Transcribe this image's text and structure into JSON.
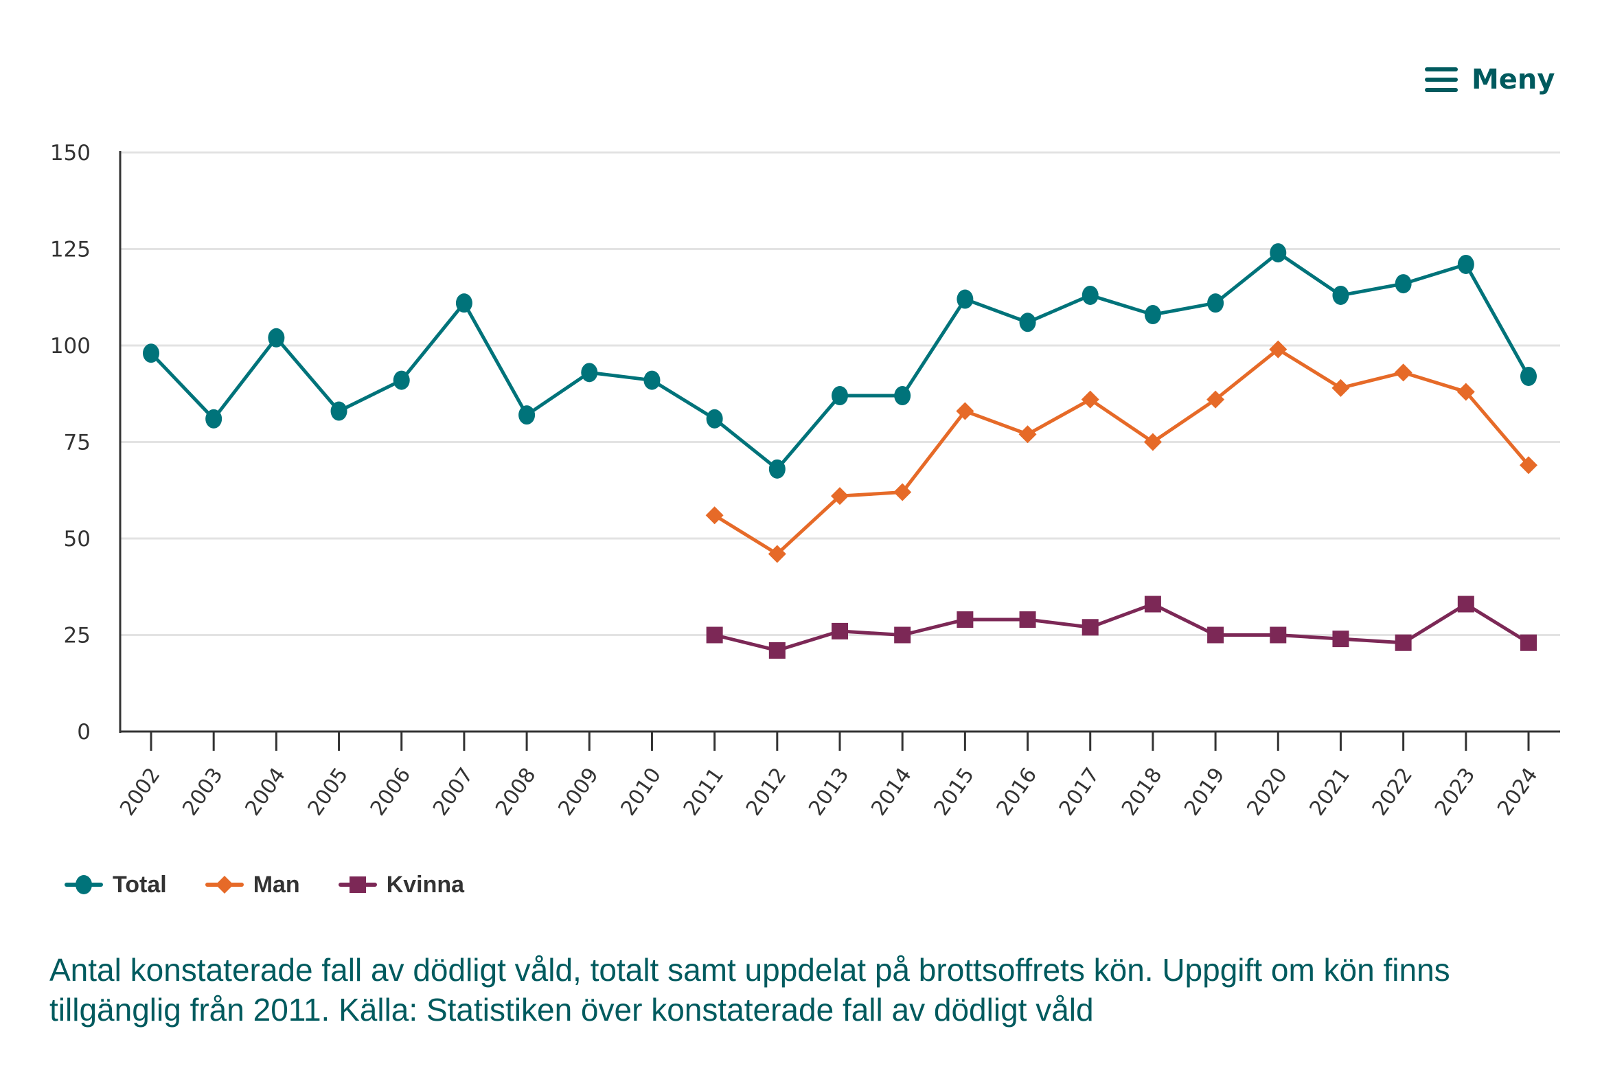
{
  "header": {
    "menu_label": "Meny",
    "menu_icon": "hamburger-menu-icon",
    "accent_color": "#005a5e"
  },
  "chart_data": {
    "type": "line",
    "title": "",
    "xlabel": "",
    "ylabel": "",
    "ylim": [
      0,
      150
    ],
    "yticks": [
      "0",
      "25",
      "50",
      "75",
      "100",
      "125",
      "150"
    ],
    "grid": true,
    "legend_position": "bottom-left",
    "categories": [
      "2002",
      "2003",
      "2004",
      "2005",
      "2006",
      "2007",
      "2008",
      "2009",
      "2010",
      "2011",
      "2012",
      "2013",
      "2014",
      "2015",
      "2016",
      "2017",
      "2018",
      "2019",
      "2020",
      "2021",
      "2022",
      "2023",
      "2024"
    ],
    "series": [
      {
        "name": "Total",
        "color": "#00737a",
        "marker": "circle",
        "values": [
          98,
          81,
          102,
          83,
          91,
          111,
          82,
          93,
          91,
          81,
          68,
          87,
          87,
          112,
          106,
          113,
          108,
          111,
          124,
          113,
          116,
          121,
          92
        ]
      },
      {
        "name": "Man",
        "color": "#e66a28",
        "marker": "diamond",
        "values": [
          null,
          null,
          null,
          null,
          null,
          null,
          null,
          null,
          null,
          56,
          46,
          61,
          62,
          83,
          77,
          86,
          75,
          86,
          99,
          89,
          93,
          88,
          69
        ]
      },
      {
        "name": "Kvinna",
        "color": "#7c2856",
        "marker": "square",
        "values": [
          null,
          null,
          null,
          null,
          null,
          null,
          null,
          null,
          null,
          25,
          21,
          26,
          25,
          29,
          29,
          27,
          33,
          25,
          25,
          24,
          23,
          33,
          23
        ]
      }
    ],
    "caption": "Antal konstaterade fall av dödligt våld, totalt samt uppdelat på brottsoffrets kön. Uppgift om kön finns tillgänglig från 2011. Källa: Statistiken över konstaterade fall av dödligt våld"
  }
}
